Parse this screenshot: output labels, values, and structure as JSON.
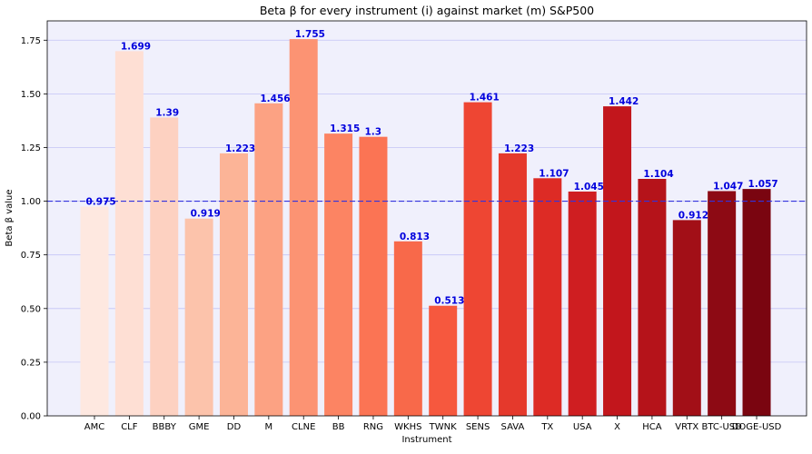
{
  "chart_data": {
    "type": "bar",
    "title": "Beta β for every instrument (i) against market (m) S&P500",
    "xlabel": "Instrument",
    "ylabel": "Beta β value",
    "categories": [
      "AMC",
      "CLF",
      "BBBY",
      "GME",
      "DD",
      "M",
      "CLNE",
      "BB",
      "RNG",
      "WKHS",
      "TWNK",
      "SENS",
      "SAVA",
      "TX",
      "USA",
      "X",
      "HCA",
      "VRTX",
      "BTC-USD",
      "DOGE-USD"
    ],
    "values": [
      0.975,
      1.699,
      1.39,
      0.919,
      1.223,
      1.456,
      1.755,
      1.315,
      1.3,
      0.813,
      0.513,
      1.461,
      1.223,
      1.107,
      1.045,
      1.442,
      1.104,
      0.912,
      1.047,
      1.057
    ],
    "data_labels": [
      "0.975",
      "1.699",
      "1.39",
      "0.919",
      "1.223",
      "1.456",
      "1.755",
      "1.315",
      "1.3",
      "0.813",
      "0.513",
      "1.461",
      "1.223",
      "1.107",
      "1.045",
      "1.442",
      "1.104",
      "0.912",
      "1.047",
      "1.057"
    ],
    "ylim": [
      0,
      1.84
    ],
    "yticks": [
      0.0,
      0.25,
      0.5,
      0.75,
      1.0,
      1.25,
      1.5,
      1.75
    ],
    "ytick_labels": [
      "0.00",
      "0.25",
      "0.50",
      "0.75",
      "1.00",
      "1.25",
      "1.50",
      "1.75"
    ],
    "reference_line": 1.0,
    "reference_line_style": "dashed",
    "grid": "horizontal",
    "colormap": "Reds",
    "colors": {
      "background": "#f0f0fc",
      "grid": "#c4c4f6",
      "reference_line": "#3333dd",
      "data_label": "#0000dd",
      "axis": "#000000",
      "bar_colors": [
        "#fee8e0",
        "#fedfd4",
        "#fdd1c1",
        "#fcc3ab",
        "#fcb497",
        "#fca283",
        "#fc9373",
        "#fc8463",
        "#fb7454",
        "#f8694a",
        "#f6583e",
        "#ee4633",
        "#e5392c",
        "#dd2b25",
        "#cf1e21",
        "#c2161c",
        "#b5131a",
        "#a20f17",
        "#8d0a14",
        "#7a0510"
      ]
    }
  }
}
